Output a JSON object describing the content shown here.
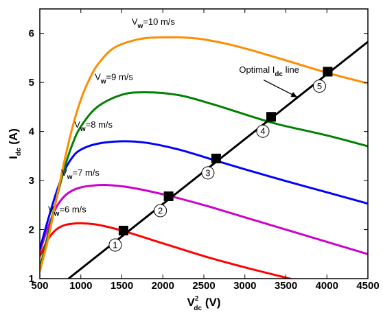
{
  "chart_data": {
    "type": "line",
    "xlabel": {
      "main": "V",
      "sup": "2",
      "sub": "dc",
      "unit": " (V)"
    },
    "ylabel": {
      "main": "I",
      "sub": "dc",
      "unit": " (A)"
    },
    "xlim": [
      500,
      4500
    ],
    "ylim": [
      1,
      6.5
    ],
    "xticks": [
      500,
      1000,
      1500,
      2000,
      2500,
      3000,
      3500,
      4000,
      4500
    ],
    "yticks": [
      1,
      2,
      3,
      4,
      5,
      6
    ],
    "grid": false,
    "series": [
      {
        "name": "V_w=6 m/s",
        "color": "#ff0000",
        "x": [
          500,
          600,
          700,
          800,
          900,
          1000,
          1200,
          1500,
          2000,
          2500,
          3000,
          3500,
          3600
        ],
        "y": [
          1.45,
          1.8,
          2.0,
          2.09,
          2.12,
          2.13,
          2.1,
          1.98,
          1.72,
          1.46,
          1.23,
          1.02,
          0.98
        ]
      },
      {
        "name": "V_w=7 m/s",
        "color": "#cc00cc",
        "x": [
          500,
          600,
          700,
          800,
          900,
          1000,
          1100,
          1300,
          1600,
          2000,
          2500,
          3000,
          3500,
          4000,
          4500
        ],
        "y": [
          1.55,
          2.05,
          2.45,
          2.68,
          2.8,
          2.86,
          2.89,
          2.91,
          2.86,
          2.72,
          2.5,
          2.25,
          2.0,
          1.75,
          1.5
        ]
      },
      {
        "name": "V_w=8 m/s",
        "color": "#0000ff",
        "x": [
          500,
          600,
          700,
          800,
          900,
          1000,
          1200,
          1500,
          1800,
          2200,
          2600,
          3000,
          3500,
          4000,
          4500
        ],
        "y": [
          1.6,
          2.2,
          2.75,
          3.2,
          3.48,
          3.63,
          3.75,
          3.8,
          3.77,
          3.63,
          3.43,
          3.23,
          2.99,
          2.76,
          2.53
        ]
      },
      {
        "name": "V_w=9 m/s",
        "color": "#008000",
        "x": [
          500,
          600,
          700,
          800,
          900,
          1000,
          1200,
          1500,
          1800,
          2200,
          2600,
          3000,
          3400,
          4000,
          4500
        ],
        "y": [
          1.2,
          1.9,
          2.6,
          3.25,
          3.75,
          4.1,
          4.5,
          4.75,
          4.8,
          4.74,
          4.56,
          4.35,
          4.15,
          3.92,
          3.7
        ]
      },
      {
        "name": "V_w=10 m/s",
        "color": "#ff8c00",
        "x": [
          500,
          600,
          700,
          800,
          900,
          1000,
          1100,
          1200,
          1400,
          1700,
          2000,
          2400,
          2800,
          3200,
          3600,
          4000,
          4500
        ],
        "y": [
          1.15,
          1.8,
          2.6,
          3.4,
          4.1,
          4.65,
          5.05,
          5.35,
          5.7,
          5.88,
          5.92,
          5.9,
          5.78,
          5.6,
          5.4,
          5.2,
          4.98
        ]
      },
      {
        "name": "Optimal I_dc line",
        "color": "#000000",
        "x": [
          850,
          4500
        ],
        "y": [
          1.0,
          5.83
        ]
      }
    ],
    "markers": {
      "color": "#000000",
      "points": [
        {
          "label": "1",
          "x": 1520,
          "y": 1.98
        },
        {
          "label": "2",
          "x": 2070,
          "y": 2.68
        },
        {
          "label": "3",
          "x": 2650,
          "y": 3.45
        },
        {
          "label": "4",
          "x": 3320,
          "y": 4.3
        },
        {
          "label": "5",
          "x": 4010,
          "y": 5.22
        }
      ]
    },
    "annotations": [
      {
        "series_index": 0,
        "pre": "V",
        "sub": "w",
        "post": "=6 m/s",
        "x": 600,
        "y": 2.35
      },
      {
        "series_index": 1,
        "pre": "V",
        "sub": "w",
        "post": "=7 m/s",
        "x": 760,
        "y": 3.1
      },
      {
        "series_index": 2,
        "pre": "V",
        "sub": "w",
        "post": "=8 m/s",
        "x": 920,
        "y": 4.08
      },
      {
        "series_index": 3,
        "pre": "V",
        "sub": "w",
        "post": "=9 m/s",
        "x": 1170,
        "y": 5.05
      },
      {
        "series_index": 4,
        "pre": "V",
        "sub": "w",
        "post": "=10 m/s",
        "x": 1620,
        "y": 6.18
      },
      {
        "series_index": 5,
        "pre": "Optimal I",
        "sub": "dc",
        "post": " line",
        "x": 2930,
        "y": 5.2
      }
    ]
  }
}
